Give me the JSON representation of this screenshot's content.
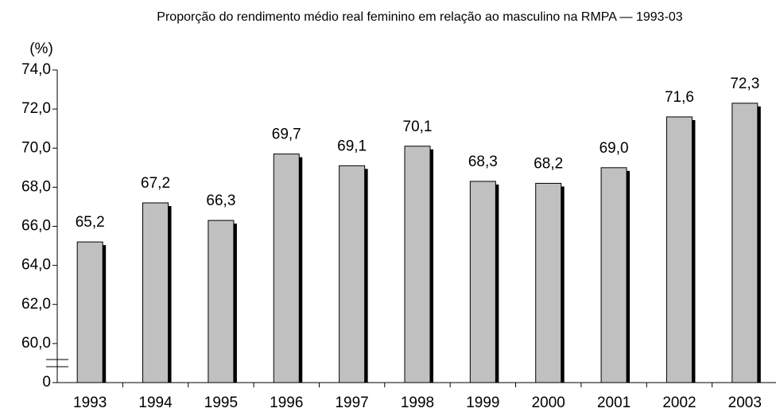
{
  "chart_data": {
    "type": "bar",
    "title": "Proporção do rendimento médio real feminino em relação ao masculino na RMPA — 1993-03",
    "y_unit": "(%)",
    "categories": [
      "1993",
      "1994",
      "1995",
      "1996",
      "1997",
      "1998",
      "1999",
      "2000",
      "2001",
      "2002",
      "2003"
    ],
    "values": [
      65.2,
      67.2,
      66.3,
      69.7,
      69.1,
      70.1,
      68.3,
      68.2,
      69.0,
      71.6,
      72.3
    ],
    "value_labels": [
      "65,2",
      "67,2",
      "66,3",
      "69,7",
      "69,1",
      "70,1",
      "68,3",
      "68,2",
      "69,0",
      "71,6",
      "72,3"
    ],
    "color": "#c0c0c0",
    "shadow_color": "#000000",
    "axis_break": true,
    "ylim": [
      58,
      74
    ],
    "yticks": [
      0,
      {
        "value": 60,
        "label": "60,0"
      },
      {
        "value": 62,
        "label": "62,0"
      },
      {
        "value": 64,
        "label": "64,0"
      },
      {
        "value": 66,
        "label": "66,0"
      },
      {
        "value": 68,
        "label": "68,0"
      },
      {
        "value": 70,
        "label": "70,0"
      },
      {
        "value": 72,
        "label": "72,0"
      },
      {
        "value": 74,
        "label": "74,0"
      }
    ],
    "grid": false
  }
}
